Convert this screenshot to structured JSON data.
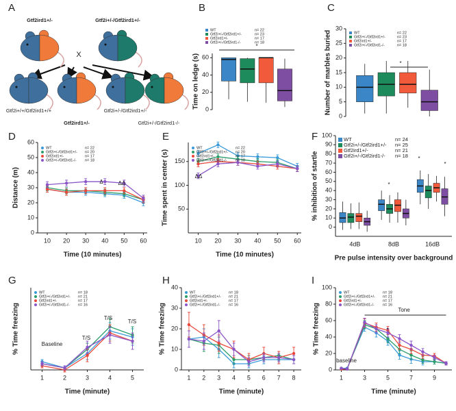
{
  "diagram": {
    "letter": "A",
    "parents": [
      "Gtf2ird1+/-",
      "Gtf2i+/-/Gtf2ird1+/-"
    ],
    "cross": "X",
    "offspring": [
      "Gtf2i+/+/Gtf2ird1+/+",
      "Gtf2ird1+/-",
      "Gtf2i+/-/Gtf2ird1+/-",
      "Gtf2i+/-/Gtf2ird1-/-"
    ]
  },
  "chart_data": [
    {
      "type": "box",
      "letter": "B",
      "ylabel": "Time on ledge (s)",
      "ylim": [
        0,
        65
      ],
      "yticks": [
        0,
        20,
        40,
        60
      ],
      "annotations": [
        "*"
      ],
      "series": [
        {
          "name": "WT",
          "n": "n= 22",
          "color": "#3b86c6",
          "values": [
            {
              "min": 12,
              "q1": 33,
              "median": 58,
              "q3": 60,
              "max": 60
            }
          ]
        },
        {
          "name": "Gtf2i+/-/Gtf2ird1+/-",
          "n": "n= 23",
          "color": "#1e8b5c",
          "values": [
            {
              "min": 9,
              "q1": 31,
              "median": 47,
              "q3": 59,
              "max": 60
            }
          ]
        },
        {
          "name": "Gtf2ird1+/-",
          "n": "n= 17",
          "color": "#f15a3b",
          "values": [
            {
              "min": 8,
              "q1": 31,
              "median": 60,
              "q3": 60,
              "max": 60
            }
          ]
        },
        {
          "name": "Gtf2i+/-/Gtf2ird1-/-",
          "n": "n= 18",
          "color": "#7d4ea2",
          "values": [
            {
              "min": 3,
              "q1": 10,
              "median": 22,
              "q3": 47,
              "max": 59
            }
          ]
        }
      ]
    },
    {
      "type": "box",
      "letter": "C",
      "ylabel": "Number of marbles buried",
      "ylim": [
        0,
        30
      ],
      "yticks": [
        0,
        5,
        10,
        15,
        20,
        25,
        30
      ],
      "annotations": [
        "*"
      ],
      "series": [
        {
          "name": "WT",
          "n": "n= 22",
          "color": "#3b86c6",
          "values": [
            {
              "min": 1,
              "q1": 5,
              "median": 10,
              "q3": 14,
              "max": 18
            }
          ]
        },
        {
          "name": "Gtf2i+/-/Gtf2ird1+/-",
          "n": "n= 23",
          "color": "#1e8b5c",
          "values": [
            {
              "min": 1,
              "q1": 7,
              "median": 11,
              "q3": 15,
              "max": 19
            }
          ]
        },
        {
          "name": "Gtf2ird1+/-",
          "n": "n= 17",
          "color": "#f15a3b",
          "values": [
            {
              "min": 3,
              "q1": 8,
              "median": 11,
              "q3": 15,
              "max": 19
            }
          ]
        },
        {
          "name": "Gtf2i+/-/Gtf2ird1-/-",
          "n": "n= 18",
          "color": "#7d4ea2",
          "values": [
            {
              "min": 0,
              "q1": 2,
              "median": 5,
              "q3": 9,
              "max": 16
            }
          ]
        }
      ]
    },
    {
      "type": "line",
      "letter": "D",
      "ylabel": "Distance (m)",
      "xlabel": "Time (10 minutes)",
      "x": [
        10,
        20,
        30,
        40,
        50,
        60
      ],
      "xlim": [
        5,
        62
      ],
      "xticks": [
        10,
        20,
        30,
        40,
        50,
        60
      ],
      "ylim": [
        0,
        60
      ],
      "yticks": [
        0,
        10,
        20,
        30,
        40,
        50,
        60
      ],
      "annotations": [
        "Δ",
        "ΔΔ"
      ],
      "series": [
        {
          "name": "WT",
          "n": "n= 22",
          "color": "#3a9ad9",
          "values": [
            29,
            27,
            27,
            26,
            25,
            20
          ],
          "errors": [
            2,
            2,
            2,
            2,
            2,
            2
          ]
        },
        {
          "name": "Gtf2i+/-/Gtf2ird1+/-",
          "n": "n= 20",
          "color": "#2a9d6a",
          "values": [
            30,
            28,
            28,
            27,
            26,
            22
          ],
          "errors": [
            2,
            2,
            2,
            2,
            2,
            2
          ]
        },
        {
          "name": "Gtf2ird1+/-",
          "n": "n= 17",
          "color": "#e8483a",
          "values": [
            29,
            27,
            28,
            28,
            28,
            22
          ],
          "errors": [
            2,
            2,
            2,
            2,
            2,
            2
          ]
        },
        {
          "name": "Gtf2i+/-/Gtf2ird1-/-",
          "n": "n= 18",
          "color": "#8a55c8",
          "values": [
            32,
            33,
            34,
            34,
            33,
            23
          ],
          "errors": [
            2,
            2,
            2,
            2,
            2,
            2
          ]
        }
      ]
    },
    {
      "type": "line",
      "letter": "E",
      "ylabel": "Time spent in center (s)",
      "xlabel": "Time (10 minutes)",
      "x": [
        10,
        20,
        30,
        40,
        50,
        60
      ],
      "xlim": [
        5,
        62
      ],
      "xticks": [
        10,
        20,
        30,
        40,
        50,
        60
      ],
      "ylim": [
        0,
        190
      ],
      "yticks": [
        50,
        100,
        150
      ],
      "annotations": [
        "ΔΔ"
      ],
      "series": [
        {
          "name": "WT",
          "n": "n= 22",
          "color": "#3a9ad9",
          "values": [
            167,
            185,
            162,
            160,
            158,
            140
          ],
          "errors": [
            6,
            6,
            6,
            6,
            6,
            6
          ]
        },
        {
          "name": "Gtf2i+/-/Gtf2ird1+/-",
          "n": "n= 20",
          "color": "#2a9d6a",
          "values": [
            150,
            160,
            155,
            150,
            148,
            135
          ],
          "errors": [
            6,
            6,
            6,
            6,
            6,
            6
          ]
        },
        {
          "name": "Gtf2ird1+/-",
          "n": "n= 17",
          "color": "#e8483a",
          "values": [
            145,
            150,
            148,
            145,
            140,
            135
          ],
          "errors": [
            6,
            6,
            6,
            6,
            6,
            6
          ]
        },
        {
          "name": "Gtf2i+/-/Gtf2ird1-/-",
          "n": "n= 18",
          "color": "#8a55c8",
          "values": [
            120,
            145,
            148,
            140,
            145,
            135
          ],
          "errors": [
            6,
            6,
            6,
            6,
            6,
            6
          ]
        }
      ]
    },
    {
      "type": "box",
      "letter": "F",
      "ylabel": "% inhibition of startle",
      "xlabel": "Pre pulse intensity over background",
      "categories": [
        "4dB",
        "8dB",
        "16dB"
      ],
      "ylim": [
        -10,
        100
      ],
      "yticks": [
        0,
        10,
        20,
        30,
        40,
        50,
        60,
        70,
        80,
        90,
        100
      ],
      "annotations": [
        "*",
        "*",
        "*"
      ],
      "series": [
        {
          "name": "WT",
          "n": "n= 24",
          "color": "#3b86c6",
          "values": [
            {
              "min": -3,
              "q1": 5,
              "median": 10,
              "q3": 16,
              "max": 28
            },
            {
              "min": 8,
              "q1": 18,
              "median": 25,
              "q3": 30,
              "max": 40
            },
            {
              "min": 25,
              "q1": 38,
              "median": 45,
              "q3": 52,
              "max": 62
            }
          ]
        },
        {
          "name": "Gtf2i+/-/Gtf2ird1+/-",
          "n": "n= 25",
          "color": "#1e8b5c",
          "values": [
            {
              "min": -2,
              "q1": 5,
              "median": 11,
              "q3": 15,
              "max": 26
            },
            {
              "min": 5,
              "q1": 15,
              "median": 20,
              "q3": 25,
              "max": 35
            },
            {
              "min": 20,
              "q1": 32,
              "median": 40,
              "q3": 45,
              "max": 58
            }
          ]
        },
        {
          "name": "Gtf2ird1+/-",
          "n": "n= 21",
          "color": "#f15a3b",
          "values": [
            {
              "min": -2,
              "q1": 6,
              "median": 12,
              "q3": 15,
              "max": 27
            },
            {
              "min": 5,
              "q1": 17,
              "median": 24,
              "q3": 30,
              "max": 38
            },
            {
              "min": 28,
              "q1": 38,
              "median": 43,
              "q3": 48,
              "max": 56
            }
          ]
        },
        {
          "name": "Gtf2i+/-/Gtf2ird1-/-",
          "n": "n= 18",
          "color": "#7d4ea2",
          "values": [
            {
              "min": -5,
              "q1": 2,
              "median": 6,
              "q3": 10,
              "max": 18
            },
            {
              "min": 2,
              "q1": 10,
              "median": 15,
              "q3": 20,
              "max": 30
            },
            {
              "min": 12,
              "q1": 25,
              "median": 33,
              "q3": 42,
              "max": 55
            }
          ]
        }
      ]
    },
    {
      "type": "line",
      "letter": "G",
      "ylabel": "% Time freezing",
      "xlabel": "Time (minute)",
      "x": [
        1,
        2,
        3,
        4,
        5
      ],
      "xlim": [
        0.5,
        5.5
      ],
      "xticks": [
        1,
        2,
        3,
        4,
        5
      ],
      "ylim": [
        0,
        40
      ],
      "annotations": [
        "Baseline",
        "T/S",
        "T/S",
        "T/S"
      ],
      "series": [
        {
          "name": "WT",
          "n": "n= 18",
          "color": "#3a9ad9",
          "values": [
            4,
            1,
            8,
            19,
            16
          ],
          "errors": [
            1,
            1,
            3,
            4,
            4
          ]
        },
        {
          "name": "Gtf2i+/-/Gtf2ird1+/-",
          "n": "n= 21",
          "color": "#2a9d6a",
          "values": [
            3,
            1,
            10,
            21,
            17
          ],
          "errors": [
            1,
            1,
            3,
            4,
            4
          ]
        },
        {
          "name": "Gtf2ird1+/-",
          "n": "n= 17",
          "color": "#e8483a",
          "values": [
            2,
            0,
            7,
            18,
            14
          ],
          "errors": [
            1,
            1,
            3,
            4,
            4
          ]
        },
        {
          "name": "Gtf2i+/-/Gtf2ird1-/-",
          "n": "n= 16",
          "color": "#8a55c8",
          "values": [
            3,
            1,
            11,
            17,
            14
          ],
          "errors": [
            1,
            1,
            3,
            4,
            4
          ]
        }
      ]
    },
    {
      "type": "line",
      "letter": "H",
      "ylabel": "% Time freezing",
      "xlabel": "Time (minute)",
      "x": [
        1,
        2,
        3,
        4,
        5,
        6,
        7,
        8
      ],
      "xlim": [
        0.5,
        8.5
      ],
      "xticks": [
        1,
        2,
        3,
        4,
        5,
        6,
        7,
        8
      ],
      "ylim": [
        0,
        40
      ],
      "yticks": [
        0,
        10,
        20,
        30,
        40
      ],
      "series": [
        {
          "name": "WT",
          "n": "n= 18",
          "color": "#3a9ad9",
          "values": [
            15,
            16,
            10,
            3,
            3,
            5,
            5,
            5
          ],
          "errors": [
            4,
            4,
            4,
            2,
            2,
            2,
            2,
            2
          ]
        },
        {
          "name": "Gtf2i+/-/Gtf2ird1+/-",
          "n": "n= 21",
          "color": "#2a9d6a",
          "values": [
            15,
            13,
            12,
            5,
            5,
            6,
            7,
            5
          ],
          "errors": [
            4,
            4,
            4,
            2,
            2,
            2,
            2,
            2
          ]
        },
        {
          "name": "Gtf2ird1+/-",
          "n": "n= 17",
          "color": "#e8483a",
          "values": [
            22,
            17,
            13,
            10,
            5,
            8,
            6,
            8
          ],
          "errors": [
            6,
            5,
            4,
            4,
            3,
            3,
            3,
            3
          ]
        },
        {
          "name": "Gtf2i+/-/Gtf2ird1-/-",
          "n": "n= 16",
          "color": "#8a55c8",
          "values": [
            15,
            14,
            19,
            10,
            4,
            6,
            6,
            5
          ],
          "errors": [
            4,
            4,
            5,
            3,
            2,
            2,
            2,
            2
          ]
        }
      ]
    },
    {
      "type": "line",
      "letter": "I",
      "ylabel": "% Time freezing",
      "xlabel": "Time (minute)",
      "x": [
        1,
        1.5,
        3,
        4,
        5,
        6,
        7,
        8,
        9,
        10
      ],
      "xlim": [
        0.5,
        10.5
      ],
      "xticks": [
        1,
        3,
        5,
        7,
        9
      ],
      "ylim": [
        0,
        100
      ],
      "yticks": [
        0,
        20,
        40,
        60,
        80,
        100
      ],
      "annotations": [
        "baseline",
        "Tone",
        "*"
      ],
      "series": [
        {
          "name": "WT",
          "n": "n= 18",
          "color": "#3a9ad9",
          "values": [
            2,
            2,
            52,
            45,
            35,
            18,
            13,
            10,
            10,
            8
          ],
          "errors": [
            1,
            1,
            5,
            5,
            5,
            5,
            5,
            4,
            3,
            2
          ]
        },
        {
          "name": "Gtf2i+/-/Gtf2ird1+/-",
          "n": "n= 21",
          "color": "#2a9d6a",
          "values": [
            2,
            1,
            55,
            50,
            38,
            25,
            18,
            12,
            10,
            8
          ],
          "errors": [
            1,
            1,
            5,
            5,
            5,
            5,
            5,
            4,
            3,
            2
          ]
        },
        {
          "name": "Gtf2ird1+/-",
          "n": "n= 17",
          "color": "#e8483a",
          "values": [
            1,
            1,
            57,
            52,
            48,
            30,
            25,
            18,
            17,
            8
          ],
          "errors": [
            1,
            1,
            5,
            5,
            5,
            5,
            5,
            4,
            3,
            2
          ]
        },
        {
          "name": "Gtf2i+/-/Gtf2ird1-/-",
          "n": "n= 16",
          "color": "#8a55c8",
          "values": [
            2,
            1,
            58,
            50,
            45,
            38,
            30,
            22,
            15,
            8
          ],
          "errors": [
            1,
            1,
            5,
            5,
            5,
            5,
            5,
            4,
            3,
            2
          ]
        }
      ]
    }
  ]
}
